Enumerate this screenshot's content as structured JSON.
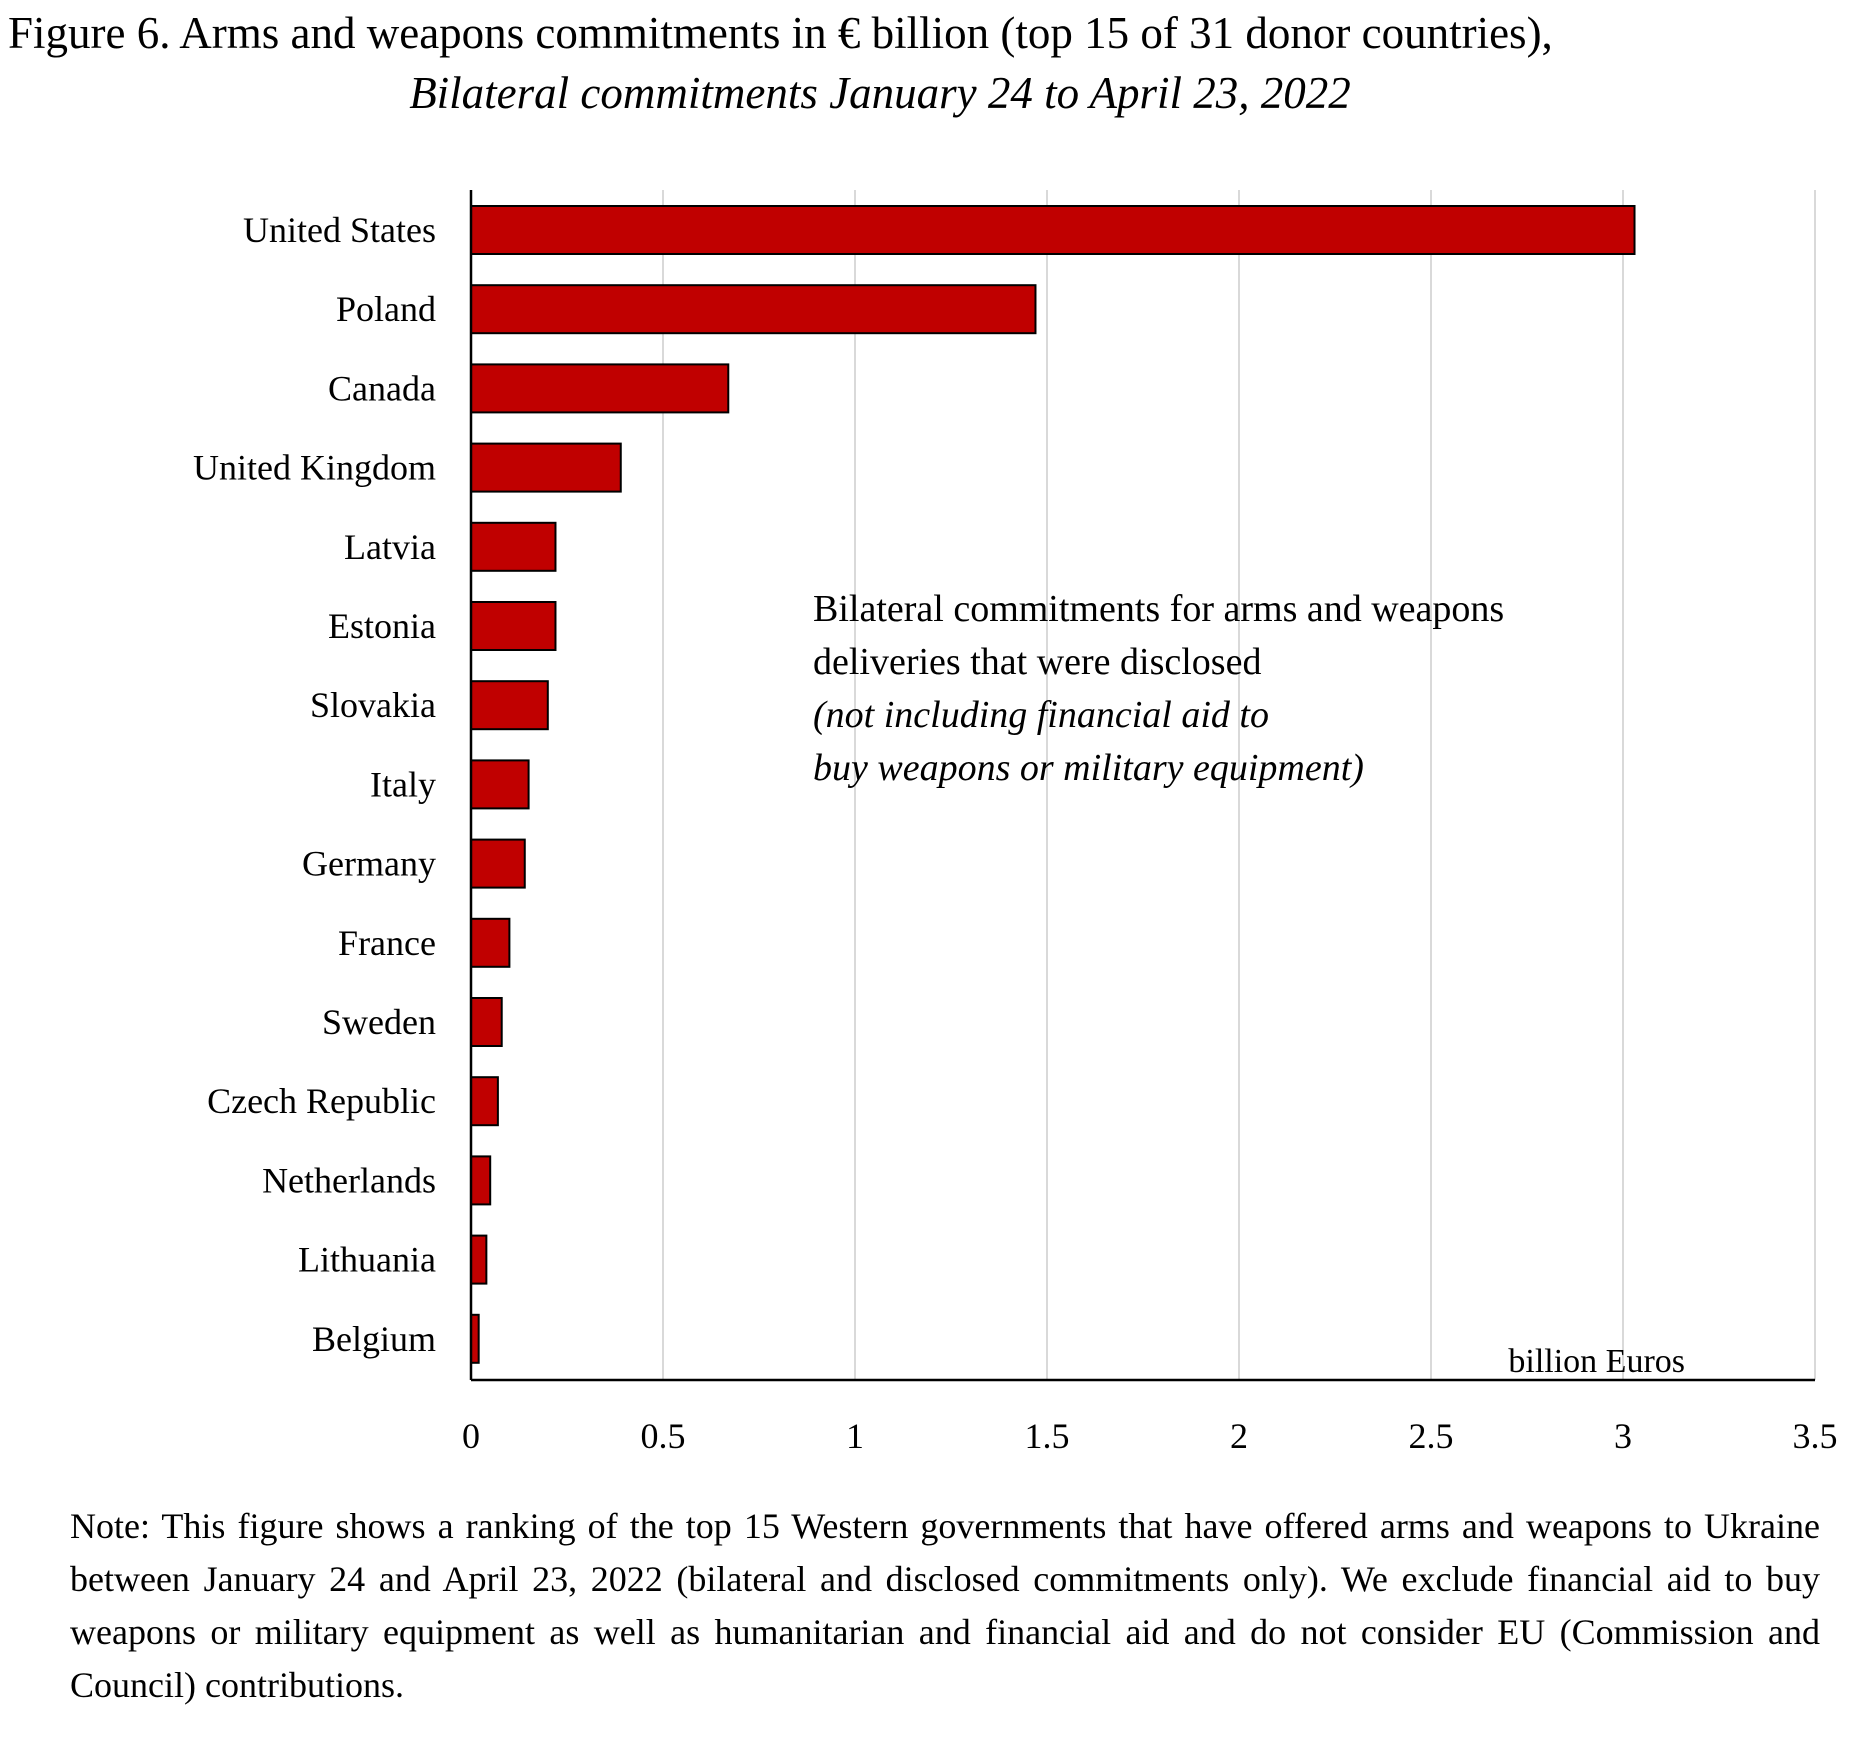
{
  "figure": {
    "title": "Figure 6. Arms and weapons commitments in € billion (top 15 of 31 donor countries),",
    "subtitle": "Bilateral commitments January 24 to April 23, 2022",
    "note": "Note: This figure shows a ranking of the top 15 Western governments that have offered arms and weapons to Ukraine between January 24 and April 23, 2022 (bilateral and disclosed commitments only). We exclude financial aid to buy weapons or military equipment as well as humanitarian and financial aid and do not consider EU (Commission and Council) contributions."
  },
  "chart_data": {
    "type": "bar",
    "orientation": "horizontal",
    "categories": [
      "United States",
      "Poland",
      "Canada",
      "United Kingdom",
      "Latvia",
      "Estonia",
      "Slovakia",
      "Italy",
      "Germany",
      "France",
      "Sweden",
      "Czech Republic",
      "Netherlands",
      "Lithuania",
      "Belgium"
    ],
    "values": [
      3.03,
      1.47,
      0.67,
      0.39,
      0.22,
      0.22,
      0.2,
      0.15,
      0.14,
      0.1,
      0.08,
      0.07,
      0.05,
      0.04,
      0.02
    ],
    "bar_color": "#c00000",
    "xlim": [
      0,
      3.5
    ],
    "xticks": [
      0,
      0.5,
      1,
      1.5,
      2,
      2.5,
      3,
      3.5
    ],
    "xtick_labels": [
      "0",
      "0.5",
      "1",
      "1.5",
      "2",
      "2.5",
      "3",
      "3.5"
    ],
    "xlabel": "billion Euros",
    "grid": "vertical",
    "annotation": {
      "lines": [
        "Bilateral commitments for arms and weapons",
        "deliveries that were disclosed"
      ],
      "italic_lines": [
        "(not including financial aid to",
        "buy weapons or military equipment)"
      ]
    }
  }
}
